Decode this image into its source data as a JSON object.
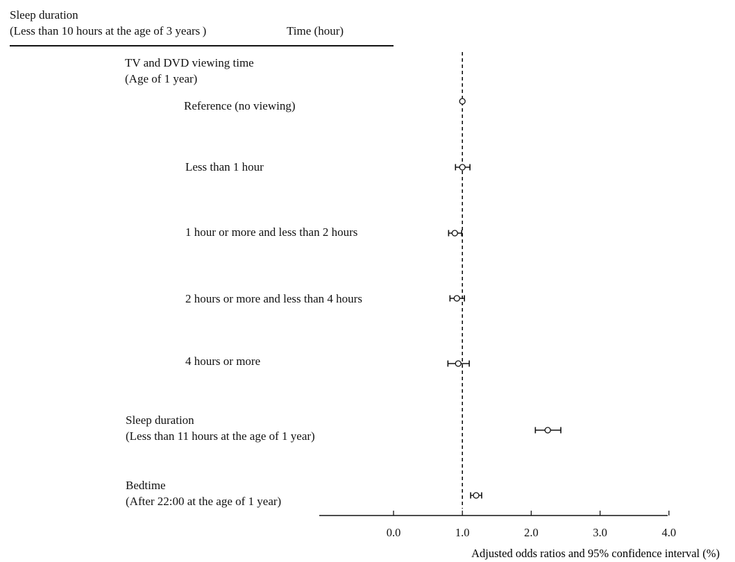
{
  "header": {
    "title_line1": "Sleep duration",
    "title_line2": "(Less than 10 hours at the age of 3 years )",
    "time_label": "Time (hour)"
  },
  "groups": {
    "tv_line1": "TV and DVD viewing time",
    "tv_line2": "(Age of 1 year)",
    "sleep_line1": "Sleep duration",
    "sleep_line2": "(Less than 11 hours at the age of 1 year)",
    "bed_line1": "Bedtime",
    "bed_line2": "(After 22:00 at the age of 1 year)"
  },
  "chart_data": {
    "type": "forest",
    "xlabel": "Adjusted  odds ratios and 95% confidence interval (%)",
    "xlim": [
      -1.0,
      4.0
    ],
    "xticks": [
      0.0,
      1.0,
      2.0,
      3.0,
      4.0
    ],
    "xtick_labels": [
      "0.0",
      "1.0",
      "2.0",
      "3.0",
      "4.0"
    ],
    "reference_line": 1.0,
    "rows": [
      {
        "label": "Reference (no viewing)",
        "or": 1.0,
        "lower": 1.0,
        "upper": 1.0
      },
      {
        "label": "Less than 1 hour",
        "or": 1.0,
        "lower": 0.9,
        "upper": 1.11
      },
      {
        "label": "1 hour or more and less than 2 hours",
        "or": 0.89,
        "lower": 0.8,
        "upper": 0.99
      },
      {
        "label": "2 hours or more and less than 4 hours",
        "or": 0.92,
        "lower": 0.82,
        "upper": 1.03
      },
      {
        "label": "4 hours or more",
        "or": 0.94,
        "lower": 0.79,
        "upper": 1.1
      },
      {
        "label": "",
        "or": 2.24,
        "lower": 2.06,
        "upper": 2.43
      },
      {
        "label": "",
        "or": 1.2,
        "lower": 1.12,
        "upper": 1.28
      }
    ]
  }
}
